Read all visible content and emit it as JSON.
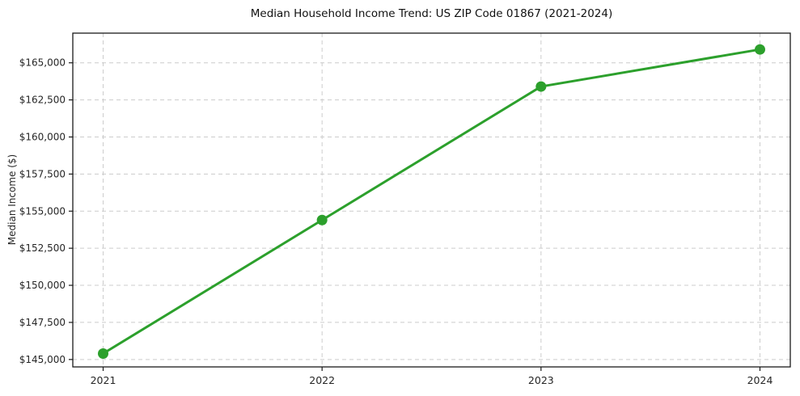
{
  "figure": {
    "background": "#ffffff"
  },
  "chart_data": {
    "type": "line",
    "title": "Median Household Income Trend: US ZIP Code 01867 (2021-2024)",
    "xlabel": "",
    "ylabel": "Median Income ($)",
    "categories": [
      "2021",
      "2022",
      "2023",
      "2024"
    ],
    "values": [
      145400,
      154400,
      163400,
      165900
    ],
    "ylim": [
      144500,
      167000
    ],
    "yticks": [
      145000,
      147500,
      150000,
      152500,
      155000,
      157500,
      160000,
      162500,
      165000
    ],
    "ytick_labels": [
      "$145,000",
      "$147,500",
      "$150,000",
      "$152,500",
      "$155,000",
      "$157,500",
      "$160,000",
      "$162,500",
      "$165,000"
    ],
    "grid": true,
    "grid_linestyle": "dashed",
    "legend_position": "none",
    "marker": "circle",
    "marker_radius": 6.5,
    "colors": {
      "line": "#2ca02c",
      "marker": "#2ca02c",
      "grid": "#cccccc",
      "spine": "#1a1a1a",
      "tick_text": "#262626",
      "title_text": "#111111",
      "background": "#ffffff"
    }
  }
}
